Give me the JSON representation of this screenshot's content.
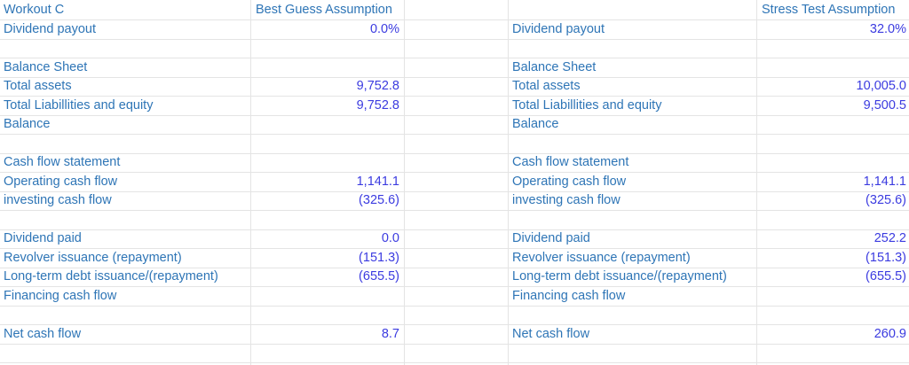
{
  "colors": {
    "label": "#2e75b6",
    "value": "#3b3be0",
    "gridline": "#e4e4e4",
    "background": "#ffffff"
  },
  "sheet": {
    "title": "Workout C",
    "left_scenario_header": "Best Guess Assumption",
    "right_scenario_header": "Stress Test Assumption"
  },
  "rows": [
    [
      {
        "t": "Workout C",
        "k": "label"
      },
      {
        "t": "Best Guess Assumption",
        "k": "hdr"
      },
      {
        "t": "",
        "k": "empty"
      },
      {
        "t": "",
        "k": "empty"
      },
      {
        "t": "Stress Test Assumption",
        "k": "hdr"
      }
    ],
    [
      {
        "t": "Dividend payout",
        "k": "label"
      },
      {
        "t": "0.0%",
        "k": "num"
      },
      {
        "t": "",
        "k": "empty"
      },
      {
        "t": "Dividend payout",
        "k": "label"
      },
      {
        "t": "32.0%",
        "k": "num"
      }
    ],
    [
      {
        "t": "",
        "k": "empty"
      },
      {
        "t": "",
        "k": "empty"
      },
      {
        "t": "",
        "k": "empty"
      },
      {
        "t": "",
        "k": "empty"
      },
      {
        "t": "",
        "k": "empty"
      }
    ],
    [
      {
        "t": "Balance Sheet",
        "k": "label"
      },
      {
        "t": "",
        "k": "empty"
      },
      {
        "t": "",
        "k": "empty"
      },
      {
        "t": "Balance Sheet",
        "k": "label"
      },
      {
        "t": "",
        "k": "empty"
      }
    ],
    [
      {
        "t": "Total assets",
        "k": "label"
      },
      {
        "t": "9,752.8",
        "k": "num"
      },
      {
        "t": "",
        "k": "empty"
      },
      {
        "t": "Total assets",
        "k": "label"
      },
      {
        "t": "10,005.0",
        "k": "num"
      }
    ],
    [
      {
        "t": "Total Liabillities and equity",
        "k": "label"
      },
      {
        "t": "9,752.8",
        "k": "num"
      },
      {
        "t": "",
        "k": "empty"
      },
      {
        "t": "Total Liabillities and equity",
        "k": "label"
      },
      {
        "t": "9,500.5",
        "k": "num"
      }
    ],
    [
      {
        "t": "Balance",
        "k": "label"
      },
      {
        "t": "",
        "k": "empty"
      },
      {
        "t": "",
        "k": "empty"
      },
      {
        "t": "Balance",
        "k": "label"
      },
      {
        "t": "",
        "k": "empty"
      }
    ],
    [
      {
        "t": "",
        "k": "empty"
      },
      {
        "t": "",
        "k": "empty"
      },
      {
        "t": "",
        "k": "empty"
      },
      {
        "t": "",
        "k": "empty"
      },
      {
        "t": "",
        "k": "empty"
      }
    ],
    [
      {
        "t": "Cash flow statement",
        "k": "label"
      },
      {
        "t": "",
        "k": "empty"
      },
      {
        "t": "",
        "k": "empty"
      },
      {
        "t": "Cash flow statement",
        "k": "label"
      },
      {
        "t": "",
        "k": "empty"
      }
    ],
    [
      {
        "t": "Operating cash flow",
        "k": "label"
      },
      {
        "t": "1,141.1",
        "k": "num"
      },
      {
        "t": "",
        "k": "empty"
      },
      {
        "t": "Operating cash flow",
        "k": "label"
      },
      {
        "t": "1,141.1",
        "k": "num"
      }
    ],
    [
      {
        "t": "investing cash flow",
        "k": "label"
      },
      {
        "t": "(325.6)",
        "k": "num"
      },
      {
        "t": "",
        "k": "empty"
      },
      {
        "t": "investing cash flow",
        "k": "label"
      },
      {
        "t": "(325.6)",
        "k": "num"
      }
    ],
    [
      {
        "t": "",
        "k": "empty"
      },
      {
        "t": "",
        "k": "empty"
      },
      {
        "t": "",
        "k": "empty"
      },
      {
        "t": "",
        "k": "empty"
      },
      {
        "t": "",
        "k": "empty"
      }
    ],
    [
      {
        "t": "Dividend paid",
        "k": "label"
      },
      {
        "t": "0.0",
        "k": "num"
      },
      {
        "t": "",
        "k": "empty"
      },
      {
        "t": "Dividend paid",
        "k": "label"
      },
      {
        "t": "252.2",
        "k": "num"
      }
    ],
    [
      {
        "t": "Revolver issuance (repayment)",
        "k": "label"
      },
      {
        "t": "(151.3)",
        "k": "num"
      },
      {
        "t": "",
        "k": "empty"
      },
      {
        "t": "Revolver issuance (repayment)",
        "k": "label"
      },
      {
        "t": "(151.3)",
        "k": "num"
      }
    ],
    [
      {
        "t": "Long-term debt issuance/(repayment)",
        "k": "label"
      },
      {
        "t": "(655.5)",
        "k": "num"
      },
      {
        "t": "",
        "k": "empty"
      },
      {
        "t": "Long-term debt issuance/(repayment)",
        "k": "label"
      },
      {
        "t": "(655.5)",
        "k": "num"
      }
    ],
    [
      {
        "t": "Financing cash flow",
        "k": "label"
      },
      {
        "t": "",
        "k": "empty"
      },
      {
        "t": "",
        "k": "empty"
      },
      {
        "t": "Financing cash flow",
        "k": "label"
      },
      {
        "t": "",
        "k": "empty"
      }
    ],
    [
      {
        "t": "",
        "k": "empty"
      },
      {
        "t": "",
        "k": "empty"
      },
      {
        "t": "",
        "k": "empty"
      },
      {
        "t": "",
        "k": "empty"
      },
      {
        "t": "",
        "k": "empty"
      }
    ],
    [
      {
        "t": "Net cash flow",
        "k": "label"
      },
      {
        "t": "8.7",
        "k": "num"
      },
      {
        "t": "",
        "k": "empty"
      },
      {
        "t": "Net cash flow",
        "k": "label"
      },
      {
        "t": "260.9",
        "k": "num"
      }
    ],
    [
      {
        "t": "",
        "k": "empty"
      },
      {
        "t": "",
        "k": "empty"
      },
      {
        "t": "",
        "k": "empty"
      },
      {
        "t": "",
        "k": "empty"
      },
      {
        "t": "",
        "k": "empty"
      }
    ],
    [
      {
        "t": "",
        "k": "empty"
      },
      {
        "t": "",
        "k": "empty"
      },
      {
        "t": "",
        "k": "empty"
      },
      {
        "t": "",
        "k": "empty"
      },
      {
        "t": "",
        "k": "empty"
      }
    ]
  ]
}
